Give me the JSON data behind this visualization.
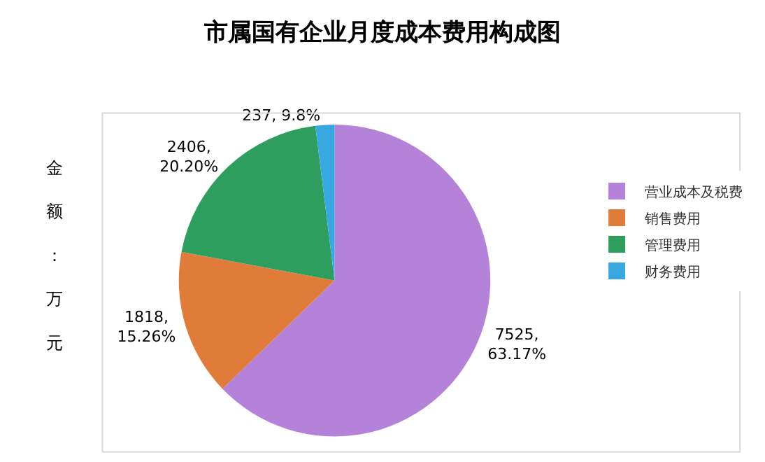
{
  "chart_data": {
    "type": "pie",
    "title": "市属国有企业月度成本费用构成图",
    "ylabel": "金额：万元",
    "categories": [
      "营业成本及税费",
      "销售费用",
      "管理费用",
      "财务费用"
    ],
    "values": [
      7525,
      1818,
      2406,
      237
    ],
    "colors": [
      "#b483d9",
      "#e07b39",
      "#2e9e5e",
      "#3aa8e0"
    ],
    "value_labels": [
      "7525,\n63.17%",
      "1818,\n15.26%",
      "2406,\n20.20%",
      "237, 9.8%"
    ],
    "legend": "right"
  }
}
